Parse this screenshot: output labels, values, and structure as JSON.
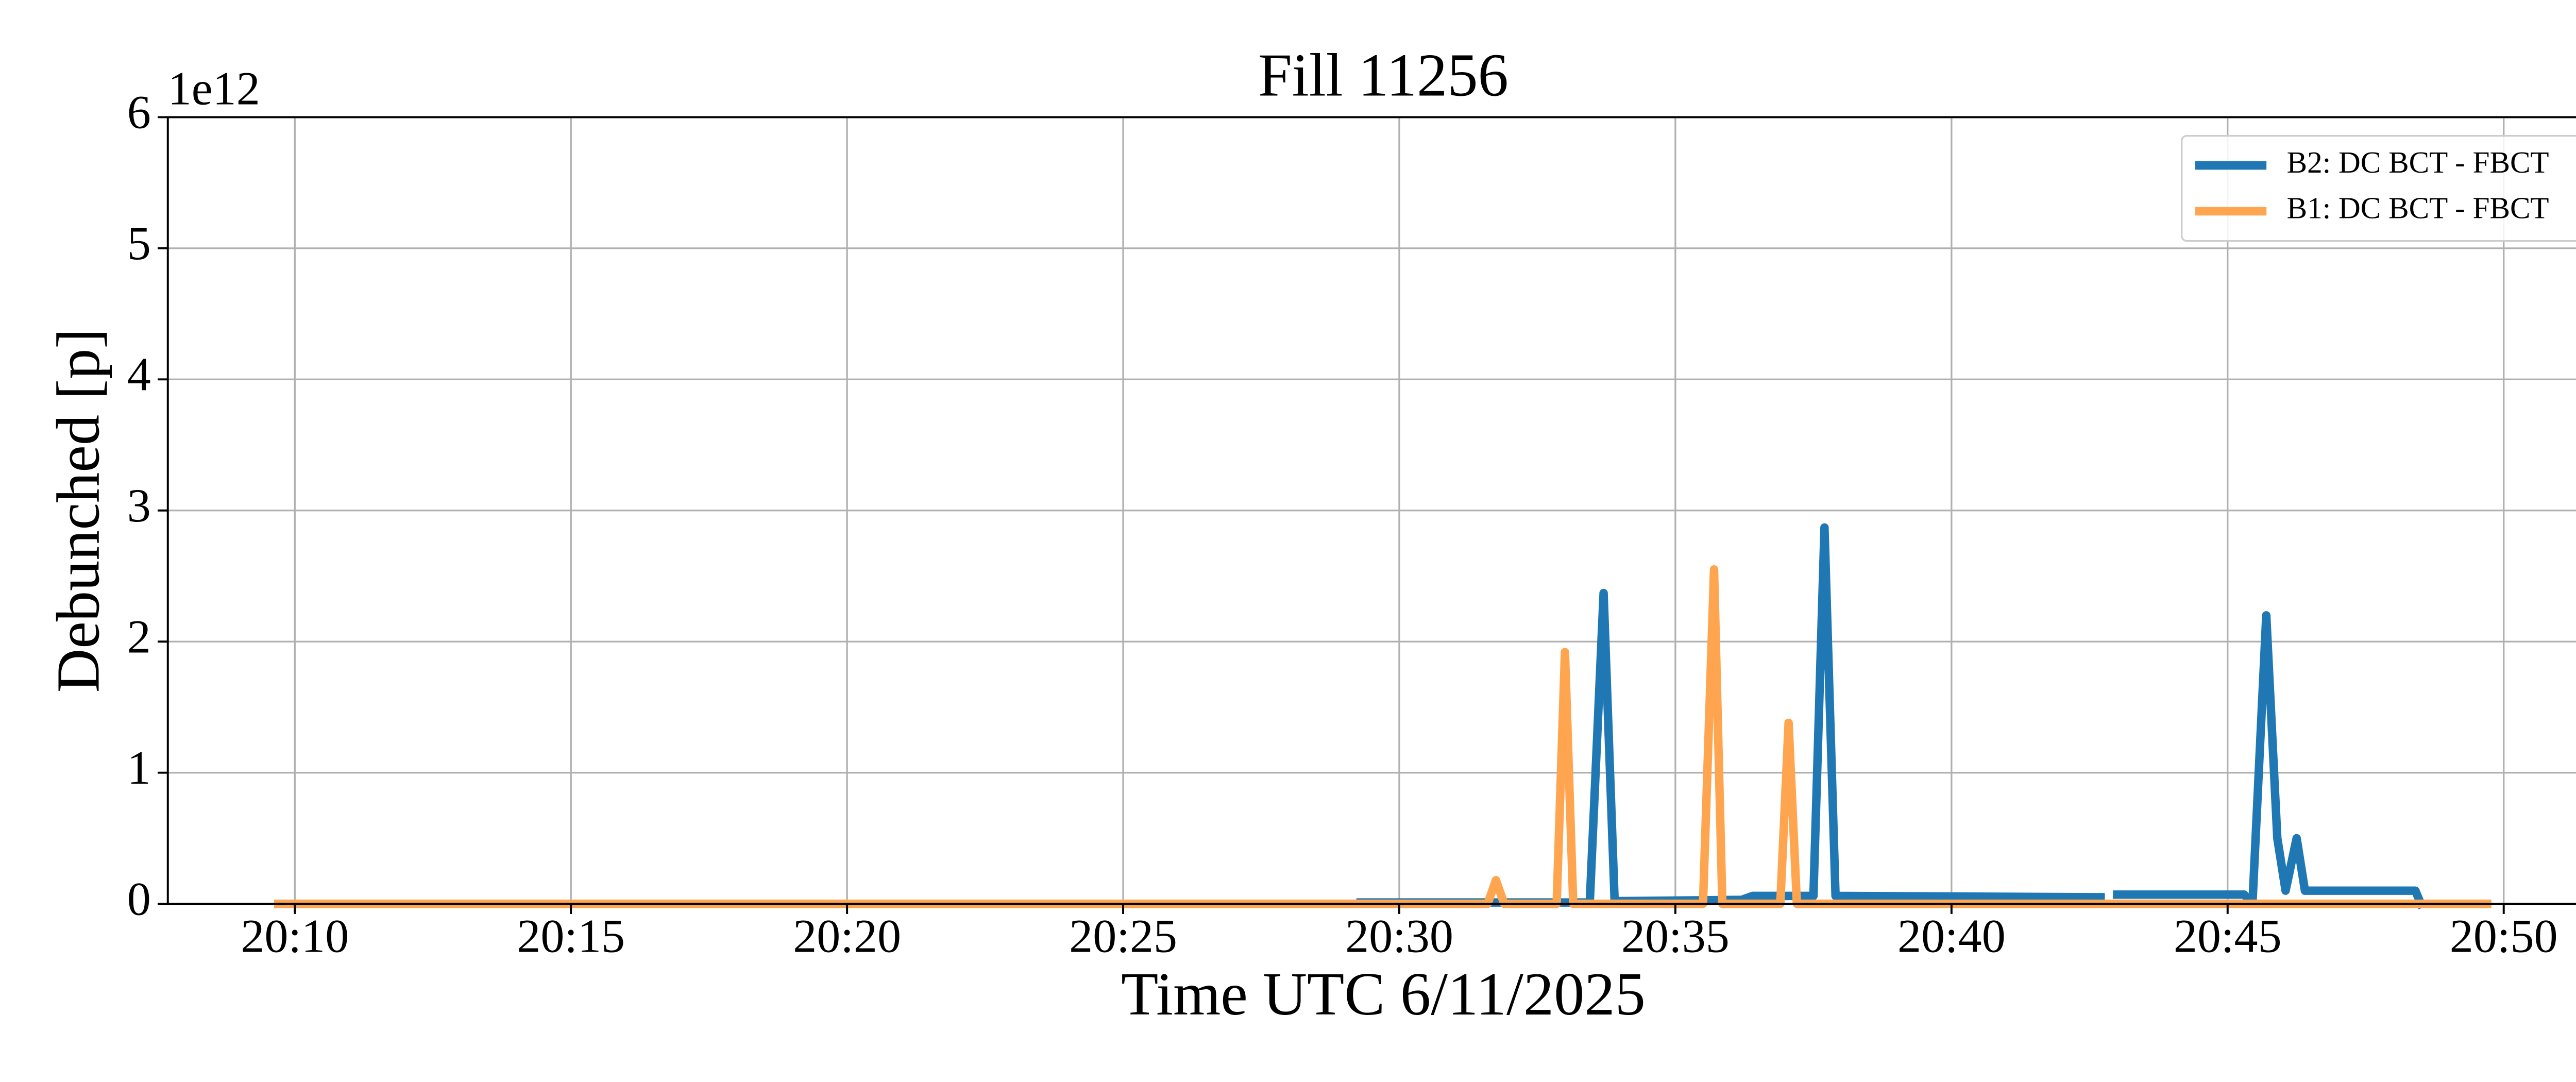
{
  "chart_data": {
    "type": "line",
    "title": "Fill 11256",
    "x_label": "Time UTC 6/11/2025",
    "y_label": "Debunched [p]",
    "y_offset_label": "1e12",
    "xlim": [
      7.7,
      51.72
    ],
    "ylim": [
      0,
      6
    ],
    "xticks": [
      {
        "value": 10,
        "label": "20:10"
      },
      {
        "value": 15,
        "label": "20:15"
      },
      {
        "value": 20,
        "label": "20:20"
      },
      {
        "value": 25,
        "label": "20:25"
      },
      {
        "value": 30,
        "label": "20:30"
      },
      {
        "value": 35,
        "label": "20:35"
      },
      {
        "value": 40,
        "label": "20:40"
      },
      {
        "value": 45,
        "label": "20:45"
      },
      {
        "value": 50,
        "label": "20:50"
      }
    ],
    "yticks": [
      0,
      1,
      2,
      3,
      4,
      5,
      6
    ],
    "grid": true,
    "legend": "upper right",
    "series": [
      {
        "name": "B2: DC BCT - FBCT",
        "color": "#1f77b4",
        "x": [
          29.3,
          33.45,
          33.7,
          33.9,
          36.2,
          36.4,
          37.5,
          37.7,
          37.9,
          42.7,
          42.9,
          43.0,
          45.3,
          45.45,
          45.7,
          45.9,
          46.05,
          46.25,
          46.4,
          48.4,
          48.5
        ],
        "values": [
          0.01,
          0.01,
          2.37,
          0.02,
          0.03,
          0.06,
          0.06,
          2.87,
          0.06,
          0.05,
          null,
          0.07,
          0.07,
          0.0,
          2.2,
          0.5,
          0.1,
          0.5,
          0.1,
          0.1,
          0.0
        ]
      },
      {
        "name": "B1: DC BCT - FBCT",
        "color": "#ffa550",
        "x": [
          9.7,
          31.6,
          31.75,
          31.9,
          32.85,
          33.0,
          33.15,
          35.5,
          35.7,
          35.85,
          36.9,
          37.05,
          37.2,
          49.7
        ],
        "values": [
          0,
          0,
          0.18,
          0,
          0,
          1.92,
          0,
          0,
          2.55,
          0,
          0,
          1.38,
          0,
          0
        ]
      }
    ]
  }
}
